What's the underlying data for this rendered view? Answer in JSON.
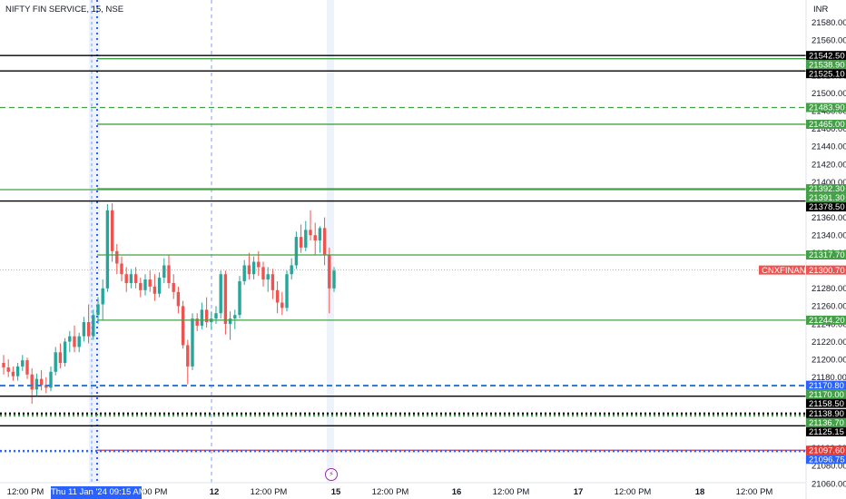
{
  "header": {
    "symbol_title": "NIFTY FIN SERVICE, 15, NSE",
    "currency": "INR"
  },
  "colors": {
    "up": "#26a69a",
    "down": "#ef5350",
    "green_level": "#43a047",
    "black_level": "#000000",
    "blue_level": "#2962ff",
    "red_level": "#e53935",
    "price_tag": "#ef5350",
    "crosshair": "#2962ff"
  },
  "chart_data": {
    "type": "candlestick",
    "ylim": [
      21050,
      21595
    ],
    "y_ticks": [
      "21580.00",
      "21560.00",
      "21540.00",
      "21520.00",
      "21500.00",
      "21480.00",
      "21460.00",
      "21440.00",
      "21420.00",
      "21400.00",
      "21380.00",
      "21360.00",
      "21340.00",
      "21320.00",
      "21300.00",
      "21280.00",
      "21260.00",
      "21240.00",
      "21220.00",
      "21200.00",
      "21180.00",
      "21160.00",
      "21140.00",
      "21120.00",
      "21100.00",
      "21080.00",
      "21060.00"
    ],
    "x_labels": [
      "12:00 PM",
      "Thu 11 Jan '24",
      "12:00 PM",
      "12",
      "12:00 PM",
      "15",
      "12:00 PM",
      "16",
      "12:00 PM",
      "17",
      "12:00 PM",
      "18",
      "12:00 PM"
    ],
    "hidden_x_labels": [
      2
    ],
    "crosshair_time_label": "Thu 11 Jan '24   09:15 AM",
    "event_icon": "lightning-icon",
    "levels": [
      {
        "price": 21542.5,
        "label": "21542.50",
        "color": "#000000",
        "style": "solid",
        "tag_bg": "#000000"
      },
      {
        "price": 21538.9,
        "label": "21538.90",
        "color": "#43a047",
        "style": "solid",
        "tag_bg": "#43a047"
      },
      {
        "price": 21525.1,
        "label": "21525.10",
        "color": "#000000",
        "style": "solid",
        "tag_bg": "#000000"
      },
      {
        "price": 21483.9,
        "label": "21483.90",
        "color": "#43a047",
        "style": "dashed",
        "tag_bg": "#43a047"
      },
      {
        "price": 21465.0,
        "label": "21465.00",
        "color": "#43a047",
        "style": "solid",
        "tag_bg": "#43a047"
      },
      {
        "price": 21392.3,
        "label": "21392.30",
        "color": "#43a047",
        "style": "solid",
        "tag_bg": "#43a047"
      },
      {
        "price": 21391.3,
        "label": "21391.30",
        "color": "#43a047",
        "style": "solid",
        "tag_bg": "#43a047"
      },
      {
        "price": 21378.5,
        "label": "21378.50",
        "color": "#000000",
        "style": "solid",
        "tag_bg": "#000000"
      },
      {
        "price": 21317.7,
        "label": "21317.70",
        "color": "#43a047",
        "style": "solid",
        "tag_bg": "#43a047"
      },
      {
        "price": 21244.2,
        "label": "21244.20",
        "color": "#43a047",
        "style": "solid",
        "tag_bg": "#43a047"
      },
      {
        "price": 21170.8,
        "label": "21170.80",
        "color": "#2962ff",
        "style": "dashed",
        "tag_bg": "#2962ff"
      },
      {
        "price": 21170.0,
        "label": "21170.00",
        "color": "#43a047",
        "style": "dashed",
        "tag_bg": "#43a047"
      },
      {
        "price": 21158.5,
        "label": "21158.50",
        "color": "#000000",
        "style": "solid",
        "tag_bg": "#000000"
      },
      {
        "price": 21138.9,
        "label": "21138.90",
        "color": "#000000",
        "style": "dotted",
        "tag_bg": "#000000"
      },
      {
        "price": 21136.7,
        "label": "21136.70",
        "color": "#43a047",
        "style": "dotted",
        "tag_bg": "#43a047"
      },
      {
        "price": 21125.15,
        "label": "21125.15",
        "color": "#000000",
        "style": "solid",
        "tag_bg": "#000000"
      },
      {
        "price": 21097.6,
        "label": "21097.60",
        "color": "#e53935",
        "style": "solid",
        "tag_bg": "#e53935"
      },
      {
        "price": 21096.75,
        "label": "21096.75",
        "color": "#2962ff",
        "style": "dotted",
        "tag_bg": "#2962ff"
      }
    ],
    "last_price": {
      "symbol": "CNXFINANCE",
      "price": 21300.7,
      "label": "21300.70"
    },
    "candles": [
      [
        21196,
        21205,
        21183,
        21191
      ],
      [
        21191,
        21200,
        21180,
        21186
      ],
      [
        21186,
        21192,
        21176,
        21181
      ],
      [
        21181,
        21196,
        21176,
        21192
      ],
      [
        21192,
        21205,
        21187,
        21199
      ],
      [
        21199,
        21202,
        21178,
        21183
      ],
      [
        21183,
        21190,
        21150,
        21166
      ],
      [
        21166,
        21184,
        21158,
        21178
      ],
      [
        21178,
        21188,
        21165,
        21171
      ],
      [
        21171,
        21180,
        21162,
        21168
      ],
      [
        21168,
        21192,
        21164,
        21186
      ],
      [
        21186,
        21214,
        21182,
        21208
      ],
      [
        21208,
        21218,
        21190,
        21196
      ],
      [
        21196,
        21224,
        21192,
        21220
      ],
      [
        21220,
        21232,
        21208,
        21226
      ],
      [
        21226,
        21238,
        21208,
        21214
      ],
      [
        21214,
        21230,
        21208,
        21226
      ],
      [
        21226,
        21248,
        21220,
        21242
      ],
      [
        21242,
        21262,
        21218,
        21226
      ],
      [
        21226,
        21256,
        21222,
        21250
      ],
      [
        21250,
        21270,
        21240,
        21262
      ],
      [
        21262,
        21290,
        21244,
        21280
      ],
      [
        21280,
        21375,
        21276,
        21368
      ],
      [
        21368,
        21376,
        21310,
        21322
      ],
      [
        21322,
        21330,
        21296,
        21308
      ],
      [
        21308,
        21316,
        21288,
        21296
      ],
      [
        21296,
        21304,
        21276,
        21286
      ],
      [
        21286,
        21302,
        21280,
        21296
      ],
      [
        21296,
        21304,
        21280,
        21286
      ],
      [
        21286,
        21292,
        21270,
        21278
      ],
      [
        21278,
        21296,
        21272,
        21290
      ],
      [
        21290,
        21300,
        21276,
        21282
      ],
      [
        21282,
        21296,
        21266,
        21274
      ],
      [
        21274,
        21298,
        21270,
        21292
      ],
      [
        21292,
        21314,
        21286,
        21306
      ],
      [
        21306,
        21318,
        21280,
        21286
      ],
      [
        21286,
        21296,
        21268,
        21276
      ],
      [
        21276,
        21282,
        21252,
        21260
      ],
      [
        21260,
        21266,
        21212,
        21216
      ],
      [
        21216,
        21222,
        21172,
        21192
      ],
      [
        21192,
        21252,
        21188,
        21246
      ],
      [
        21246,
        21252,
        21232,
        21238
      ],
      [
        21238,
        21264,
        21234,
        21256
      ],
      [
        21256,
        21270,
        21236,
        21242
      ],
      [
        21242,
        21254,
        21234,
        21246
      ],
      [
        21246,
        21260,
        21240,
        21252
      ],
      [
        21252,
        21300,
        21246,
        21296
      ],
      [
        21296,
        21300,
        21228,
        21240
      ],
      [
        21240,
        21254,
        21222,
        21246
      ],
      [
        21246,
        21256,
        21234,
        21250
      ],
      [
        21250,
        21294,
        21246,
        21288
      ],
      [
        21288,
        21312,
        21284,
        21306
      ],
      [
        21306,
        21320,
        21290,
        21296
      ],
      [
        21296,
        21316,
        21290,
        21310
      ],
      [
        21310,
        21322,
        21294,
        21304
      ],
      [
        21304,
        21310,
        21282,
        21290
      ],
      [
        21290,
        21304,
        21276,
        21296
      ],
      [
        21296,
        21302,
        21268,
        21278
      ],
      [
        21278,
        21288,
        21252,
        21264
      ],
      [
        21264,
        21276,
        21250,
        21258
      ],
      [
        21258,
        21300,
        21254,
        21296
      ],
      [
        21296,
        21314,
        21290,
        21306
      ],
      [
        21306,
        21344,
        21302,
        21338
      ],
      [
        21338,
        21352,
        21320,
        21326
      ],
      [
        21326,
        21356,
        21322,
        21346
      ],
      [
        21346,
        21368,
        21334,
        21340
      ],
      [
        21340,
        21354,
        21318,
        21334
      ],
      [
        21334,
        21350,
        21320,
        21348
      ],
      [
        21348,
        21360,
        21306,
        21318
      ],
      [
        21318,
        21326,
        21252,
        21280
      ],
      [
        21280,
        21304,
        21276,
        21300
      ]
    ]
  }
}
